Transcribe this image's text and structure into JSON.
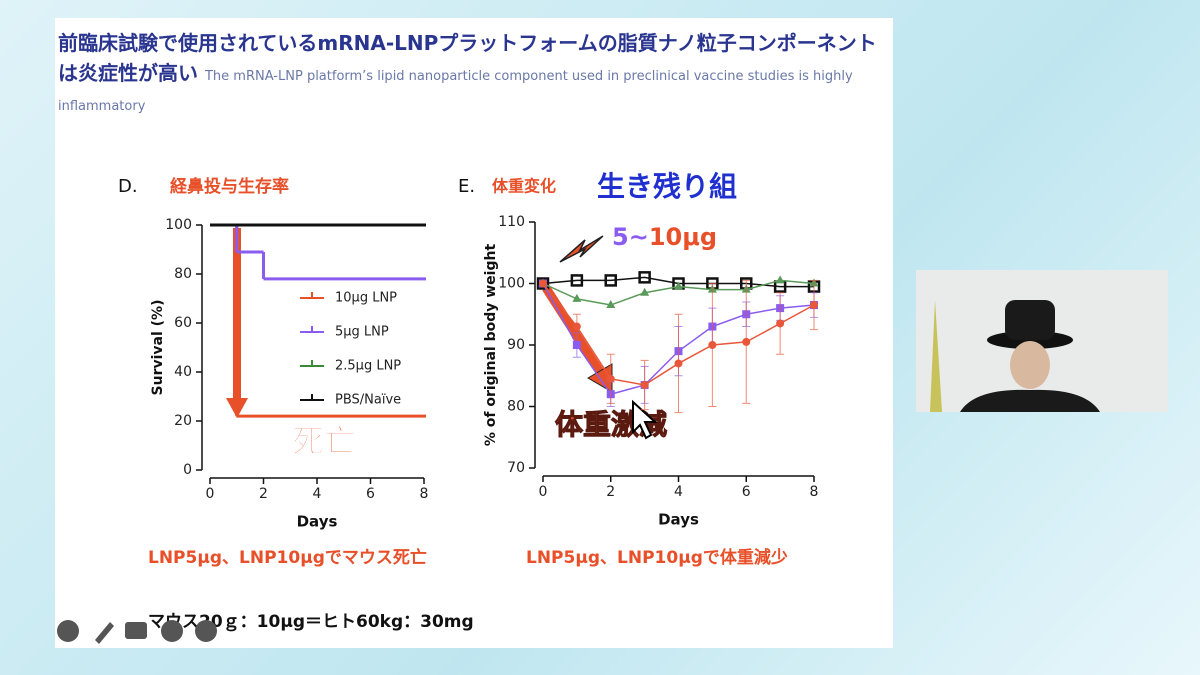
{
  "slide": {
    "title": "前臨床試験で使用されているmRNA-LNPプラットフォームの脂質ナノ粒子コンポーネントは炎症性が高い",
    "title_en": "The mRNA-LNP platform’s lipid nanoparticle component used in preclinical vaccine studies is highly inflammatory",
    "panel_d_label": "D.",
    "panel_d_title": "経鼻投与生存率",
    "panel_d_note": "死亡",
    "panel_e_label": "E.",
    "panel_e_title": "体重変化",
    "panel_e_subtitle": "生き残り組",
    "panel_e_dose": [
      "5",
      "~",
      "10μg"
    ],
    "panel_e_note": "体重激減",
    "caption_left": "LNP5μg、LNP10μgでマウス死亡",
    "caption_right": "LNP5μg、LNP10μgで体重減少",
    "footnote": "マウス20ｇ：10μg＝ヒト60kg：30mg"
  },
  "chart_data": [
    {
      "type": "step",
      "xlabel": "Days",
      "ylabel": "Survival (%)",
      "xlim": [
        0,
        8
      ],
      "xticks": [
        0,
        2,
        4,
        6,
        8
      ],
      "ylim": [
        0,
        100
      ],
      "yticks": [
        0,
        20,
        40,
        60,
        80,
        100
      ],
      "series": [
        {
          "name": "10μg LNP",
          "color": "#e8502a",
          "x": [
            0,
            1,
            8
          ],
          "values": [
            100,
            22,
            22
          ]
        },
        {
          "name": "5μg LNP",
          "color": "#8a5cf0",
          "x": [
            0,
            1,
            2,
            8
          ],
          "values": [
            100,
            89,
            78,
            78
          ]
        },
        {
          "name": "2.5μg LNP",
          "color": "#3a8a3a",
          "x": [
            0,
            8
          ],
          "values": [
            100,
            100
          ]
        },
        {
          "name": "PBS/Naïve",
          "color": "#111111",
          "x": [
            0,
            8
          ],
          "values": [
            100,
            100
          ]
        }
      ]
    },
    {
      "type": "line",
      "xlabel": "Days",
      "ylabel": "% of original body weight",
      "xlim": [
        0,
        8
      ],
      "xticks": [
        0,
        2,
        4,
        6,
        8
      ],
      "ylim": [
        70,
        110
      ],
      "yticks": [
        70,
        80,
        90,
        100,
        110
      ],
      "x": [
        0,
        1,
        2,
        3,
        4,
        5,
        6,
        7,
        8
      ],
      "series": [
        {
          "color": "#111111",
          "marker": "square",
          "values": [
            100,
            100.5,
            100.5,
            101,
            100,
            100,
            100,
            99.5,
            99.5
          ]
        },
        {
          "color": "#5a9a5a",
          "marker": "triangle",
          "values": [
            100,
            97.5,
            96.5,
            98.5,
            99.5,
            99,
            99,
            100.5,
            100
          ]
        },
        {
          "color": "#8a5cf0",
          "marker": "square-filled",
          "values": [
            100,
            90,
            82,
            83.5,
            89,
            93,
            95,
            96,
            96.5
          ],
          "errors": [
            0,
            2,
            2,
            3,
            4,
            3,
            2,
            2,
            2
          ]
        },
        {
          "color": "#e8573a",
          "marker": "circle",
          "values": [
            100,
            93,
            84.5,
            83.5,
            87,
            90,
            90.5,
            93.5,
            96.5
          ],
          "errors": [
            0,
            2,
            4,
            4,
            8,
            10,
            10,
            5,
            4
          ]
        }
      ]
    }
  ]
}
